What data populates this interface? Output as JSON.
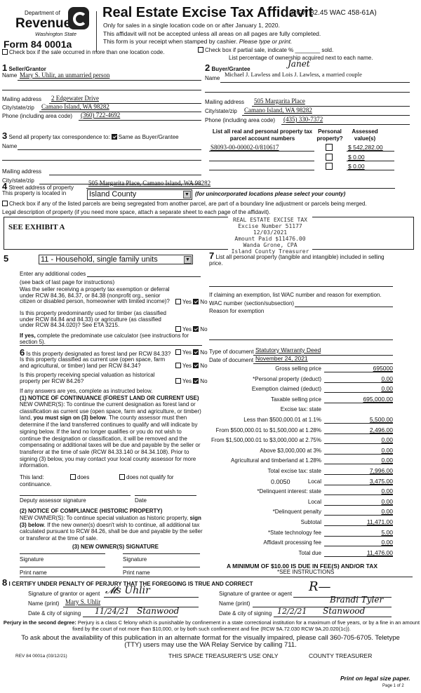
{
  "header": {
    "dept": "Department of",
    "revenue": "Revenue",
    "state": "Washington State",
    "form": "Form 84 0001a",
    "title": "Real Estate Excise Tax Affidavit",
    "rcw": "(RCW 82.45 WAC 458-61A)",
    "line1": "Only for sales in a single location code on or after January 1, 2020.",
    "line2": "This affidavit will not be accepted unless all areas on all pages are fully completed.",
    "line3": "This form is your receipt when stamped by cashier.",
    "line3_italic": "Please type or print."
  },
  "checks": {
    "multi_location": "Check box if the sale occurred in more than one location code.",
    "partial_sale": "Check box if partial sale, indicate % ________ sold.",
    "ownership": "List percentage of ownership acquired next to each name."
  },
  "seller": {
    "num": "1",
    "title": "Seller/Grantor",
    "name_label": "Name",
    "name": "Mary S. Uhlir, an unmarried person",
    "mail_label": "Mailing address",
    "mail": "2 Edgewater Drive",
    "city_label": "City/state/zip",
    "city": "Camano Island, WA 98282",
    "phone_label": "Phone (including area code)",
    "phone": "(360) 722-4692"
  },
  "buyer": {
    "num": "2",
    "title": "Buyer/Grantee",
    "name_label": "Name",
    "name": "Michael J. Lawless and Lois J. Lawless, a married couple",
    "handwritten": "Janet",
    "mail_label": "Mailing address",
    "mail": "505 Margarita Place",
    "city_label": "City/state/zip",
    "city": "Camano Island, WA 98282",
    "phone_label": "Phone (including area code)",
    "phone": "(435) 330-7372"
  },
  "section3": {
    "num": "3",
    "label": "Send all property tax correspondence to:",
    "same": "Same as Buyer/Grantee",
    "same_checked": true,
    "name_label": "Name",
    "mail_label": "Mailing address",
    "city_label": "City/state/zip"
  },
  "parcels": {
    "header_parcel": "List all real and personal property tax parcel account numbers",
    "header_personal": "Personal property?",
    "header_value": "Assessed value(s)",
    "rows": [
      {
        "parcel": "S8093-00-00002-0/810617",
        "value": "$ 542,282.00"
      },
      {
        "parcel": "",
        "value": "$ 0.00"
      },
      {
        "parcel": "",
        "value": "$ 0.00"
      }
    ]
  },
  "section4": {
    "num": "4",
    "street_label": "Street address of property",
    "street": "505 Margarita Place, Camano Island, WA 98282",
    "located_label": "This property is located in",
    "county": "Island County",
    "county_note": "(for unincorporated locations please select your county)",
    "segregated": "Check box if any of the listed parcels are being segregated from another parcel, are part of a boundary line adjustment or parcels being merged.",
    "legal_label": "Legal description of property (if you need more space, attach a separate sheet to each page of the affidavit).",
    "legal": "SEE EXHIBIT A"
  },
  "stamp": {
    "l1": "REAL ESTATE EXCISE TAX",
    "l2": "Excise Number 51177",
    "l3": "12/03/2021",
    "l4": "Amount Paid $11476.00",
    "l5": "Wanda Grone, CPA",
    "l6": "Island County Treasurer"
  },
  "section5": {
    "num": "5",
    "use_code": "11 - Household, single family units",
    "codes_label": "Enter any additional codes",
    "codes_note": "(see back of last page for instructions)",
    "q1": "Was the seller receiving a property tax exemption or deferral under RCW 84.36, 84.37, or 84.38 (nonprofit org., senior citizen or disabled person, homeowner with limited income)?",
    "q2": "Is this property predominantly used for timber (as classified under RCW 84.84 and 84.33) or agriculture (as classified under RCW 84.34.020)? See ETA 3215.",
    "q2_note_bold": "If yes,",
    "q2_note": "complete the predominate use calculator (see instructions for section 5).",
    "yes": "Yes",
    "no": "No"
  },
  "section6": {
    "num": "6",
    "q1": "Is this property designated as forest land per RCW 84.33?",
    "q2": "Is this property classified as current use (open space, farm and agricultural, or timber) land per RCW 84.34?",
    "q3": "Is this property receiving special valuation as historical property per RCW 84.26?",
    "if_yes": "If any answers are yes, complete as instructed below.",
    "n1_title": "(1) NOTICE OF CONTINUANCE (FOREST LAND OR CURRENT USE)",
    "n1_a": "NEW OWNER(S): To continue the current designation as forest land or classification as current use (open space, farm and agriculture, or timber) land,",
    "n1_bold": "you must sign on (3) below",
    "n1_b": ". The county assessor must then determine if the land transferred continues to qualify and will indicate by signing below. If the land no longer qualifies or you do not wish to continue the designation or classification, it will be removed and the compensating or additional taxes will be due and payable by the seller or transferor at the time of sale (RCW 84.33.140 or 84.34.108). Prior to signing (3) below, you may contact your local county assessor for more information.",
    "this_land": "This land:",
    "does": "does",
    "does_not": "does not qualify for",
    "continuance": "continuance.",
    "deputy": "Deputy assessor signature",
    "date": "Date",
    "n2_title": "(2) NOTICE OF COMPLIANCE (HISTORIC PROPERTY)",
    "n2_a": "NEW OWNER(S): To continue special valuation as historic property,",
    "n2_bold": "sign (3) below",
    "n2_b": ". If the new owner(s) doesn't wish to continue, all additional tax calculated pursuant to RCW 84.26, shall be due and payable by the seller or transferor at the time of sale.",
    "n3_title": "(3) NEW OWNER(S) SIGNATURE",
    "signature": "Signature",
    "print_name": "Print name"
  },
  "section7": {
    "num": "7",
    "label": "List all personal property (tangible and intangible) included in selling price.",
    "exempt": "If claiming an exemption, list WAC number and reason for exemption.",
    "wac_label": "WAC number (section/subsection)",
    "reason_label": "Reason for exemption",
    "doc_type_label": "Type of document",
    "doc_type": "Statutory Warranty Deed",
    "doc_date_label": "Date of document",
    "doc_date": "November 24, 2021"
  },
  "fees": [
    {
      "label": "Gross selling price",
      "value": "695000"
    },
    {
      "label": "*Personal property (deduct)",
      "value": "0.00"
    },
    {
      "label": "Exemption claimed (deduct)",
      "value": "0.00"
    },
    {
      "label": "Taxable selling price",
      "value": "695,000.00"
    },
    {
      "label": "Excise tax: state",
      "value": null
    },
    {
      "label": "Less than $500,000.01 at 1.1%",
      "value": "5,500.00"
    },
    {
      "label": "From $500,000.01 to $1,500,000 at 1.28%",
      "value": "2,496.00"
    },
    {
      "label": "From $1,500,000.01 to $3,000,000 at 2.75%",
      "value": "0.00"
    },
    {
      "label": "Above $3,000,000 at 3%",
      "value": "0.00"
    },
    {
      "label": "Agricultural and timberland at 1.28%",
      "value": "0.00"
    },
    {
      "label": "Total excise tax: state",
      "value": "7,996.00"
    },
    {
      "label": "Local",
      "value": "3,475.00",
      "rate": "0.0050"
    },
    {
      "label": "*Delinquent interest: state",
      "value": "0.00"
    },
    {
      "label": "Local",
      "value": "0.00"
    },
    {
      "label": "*Delinquent penalty",
      "value": "0.00"
    },
    {
      "label": "Subtotal",
      "value": "11,471.00"
    },
    {
      "label": "*State technology fee",
      "value": "5.00"
    },
    {
      "label": "Affidavit processing fee",
      "value": "0.00"
    },
    {
      "label": "Total due",
      "value": "11,476.00"
    }
  ],
  "minimum": "A MINIMUM OF $10.00 IS DUE IN FEE(S) AND/OR TAX",
  "see_instr": "*SEE INSTRUCTIONS",
  "section8": {
    "num": "8",
    "certify": "I CERTIFY UNDER PENALTY OF PERJURY THAT THE FOREGOING IS TRUE AND CORRECT",
    "grantor_sig": "Signature of grantor or agent",
    "grantee_sig": "Signature of grantee or agent",
    "name_print": "Name (print)",
    "grantor_name": "Mary S. Uhlir",
    "grantee_name": "Brandi Tyler",
    "date_city": "Date & city of signing",
    "grantor_date": "11/24/21",
    "grantor_city": "Stanwood",
    "grantee_date": "12/2/21",
    "grantee_city": "Stanwood"
  },
  "footer": {
    "perjury_bold": "Perjury in the second degree:",
    "perjury": "Perjury is a class C felony which is punishable by confinement in a state correctional institution for a maximum of five years, or by a fine in an amount fixed by the court of not more than $10,000, or by both such confinement and fine (RCW 9A.72.030 RCW 9A.20.020(1c)).",
    "tty": "To ask about the availability of this publication in an alternate format for the visually impaired, please call 360-705-6705. Teletype (TTY) users may use the WA Relay Service by calling 711.",
    "rev": "REV 84 0001a (03/12/21)",
    "treasurer_space": "THIS SPACE TREASURER'S USE ONLY",
    "county_treasurer": "COUNTY TREASURER",
    "legal_paper": "Print on legal size paper.",
    "page": "Page 1 of 2"
  }
}
